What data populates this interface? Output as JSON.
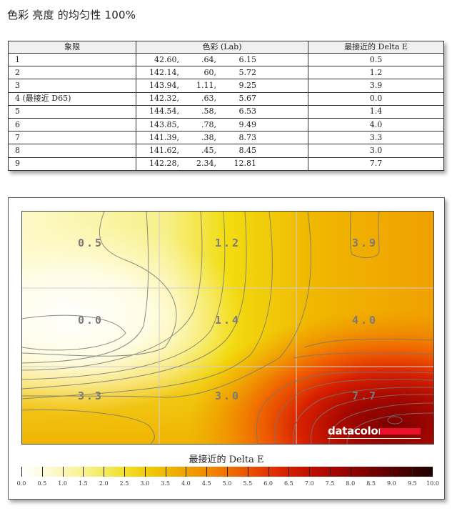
{
  "page_title": "色彩 亮度 的均匀性 100%",
  "table": {
    "headers": [
      "象限",
      "色彩 (Lab)",
      "最接近的 Delta E"
    ],
    "rows": [
      {
        "quadrant": "1",
        "L": "42.60,",
        "a": ".64,",
        "b": "6.15",
        "delta_e": "0.5"
      },
      {
        "quadrant": "2",
        "L": "142.14,",
        "a": "60,",
        "b": "5.72",
        "delta_e": "1.2"
      },
      {
        "quadrant": "3",
        "L": "143.94,",
        "a": "1.11,",
        "b": "9.25",
        "delta_e": "3.9"
      },
      {
        "quadrant": "4 (最接近 D65)",
        "L": "142.32,",
        "a": ".63,",
        "b": "5.67",
        "delta_e": "0.0"
      },
      {
        "quadrant": "5",
        "L": "144.54,",
        "a": ".58,",
        "b": "6.53",
        "delta_e": "1.4"
      },
      {
        "quadrant": "6",
        "L": "143.85,",
        "a": ".78,",
        "b": "9.49",
        "delta_e": "4.0"
      },
      {
        "quadrant": "7",
        "L": "141.39,",
        "a": ".38,",
        "b": "8.73",
        "delta_e": "3.3"
      },
      {
        "quadrant": "8",
        "L": "141.62,",
        "a": ".45,",
        "b": "8.45",
        "delta_e": "3.0"
      },
      {
        "quadrant": "9",
        "L": "142.28,",
        "a": "2.34,",
        "b": "12.81",
        "delta_e": "7.7"
      }
    ]
  },
  "chart": {
    "logo": "datacolor",
    "legend_title": "最接近的 Delta E",
    "colors": {
      "accent_logo": "#e8102a",
      "label_gray": "#7a7a7a"
    }
  },
  "chart_data": {
    "type": "heatmap",
    "title": "色彩 亮度 的均匀性 100%",
    "grid": "3x3",
    "cells": [
      [
        0.5,
        1.2,
        3.9
      ],
      [
        0.0,
        1.4,
        4.0
      ],
      [
        3.3,
        3.0,
        7.7
      ]
    ],
    "cell_labels": [
      [
        "0.5",
        "1.2",
        "3.9"
      ],
      [
        "0.0",
        "1.4",
        "4.0"
      ],
      [
        "3.3",
        "3.0",
        "7.7"
      ]
    ],
    "colorbar": {
      "label": "最接近的 Delta E",
      "range": [
        0.0,
        10.0
      ],
      "step": 0.5,
      "ticks": [
        "0.0",
        "0.5",
        "1.0",
        "1.5",
        "2.0",
        "2.5",
        "3.0",
        "3.5",
        "4.0",
        "4.5",
        "5.0",
        "5.5",
        "6.0",
        "6.5",
        "7.0",
        "7.5",
        "8.0",
        "8.5",
        "9.0",
        "9.5",
        "10.0"
      ],
      "colors": [
        "#ffffff",
        "#fdfbe0",
        "#fbf7b8",
        "#f8f28f",
        "#f4ea5f",
        "#f2df2c",
        "#f0cd0a",
        "#f0b800",
        "#f0a100",
        "#f08a00",
        "#f07000",
        "#ec5200",
        "#e43400",
        "#d41e00",
        "#c01000",
        "#a80600",
        "#900200",
        "#780000",
        "#5a0000",
        "#3c0000",
        "#1c0000"
      ]
    },
    "grid_lines": true
  }
}
